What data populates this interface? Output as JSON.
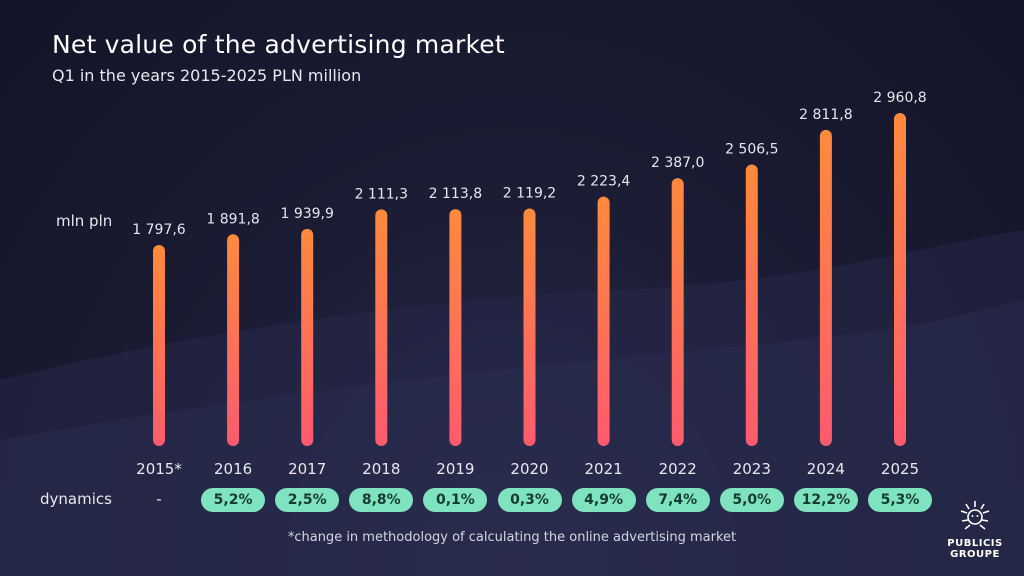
{
  "header": {
    "title": "Net value of the advertising market",
    "subtitle": "Q1 in the years 2015-2025 PLN million"
  },
  "chart_data": {
    "type": "bar",
    "title": "Net value of the advertising market",
    "subtitle": "Q1 in the years 2015-2025 PLN million",
    "ylabel": "mln pln",
    "categories": [
      "2015*",
      "2016",
      "2017",
      "2018",
      "2019",
      "2020",
      "2021",
      "2022",
      "2023",
      "2024",
      "2025"
    ],
    "values": [
      1797.6,
      1891.8,
      1939.9,
      2111.3,
      2113.8,
      2119.2,
      2223.4,
      2387.0,
      2506.5,
      2811.8,
      2960.8
    ],
    "value_labels": [
      "1 797,6",
      "1 891,8",
      "1 939,9",
      "2 111,3",
      "2 113,8",
      "2 119,2",
      "2 223,4",
      "2 387,0",
      "2 506,5",
      "2 811,8",
      "2 960,8"
    ],
    "ylim": [
      0,
      3000
    ],
    "grid": false,
    "bar_gradient": [
      "#ff8a3c",
      "#ff5a6e"
    ]
  },
  "dynamics": {
    "label": "dynamics",
    "values": [
      "-",
      "5,2%",
      "2,5%",
      "8,8%",
      "0,1%",
      "0,3%",
      "4,9%",
      "7,4%",
      "5,0%",
      "12,2%",
      "5,3%"
    ],
    "pill_color": "#7fe3c0"
  },
  "footnote": "*change in methodology of calculating the online advertising market",
  "logo": {
    "line1": "PUBLICIS",
    "line2": "GROUPE",
    "icon": "lion-head-icon"
  }
}
